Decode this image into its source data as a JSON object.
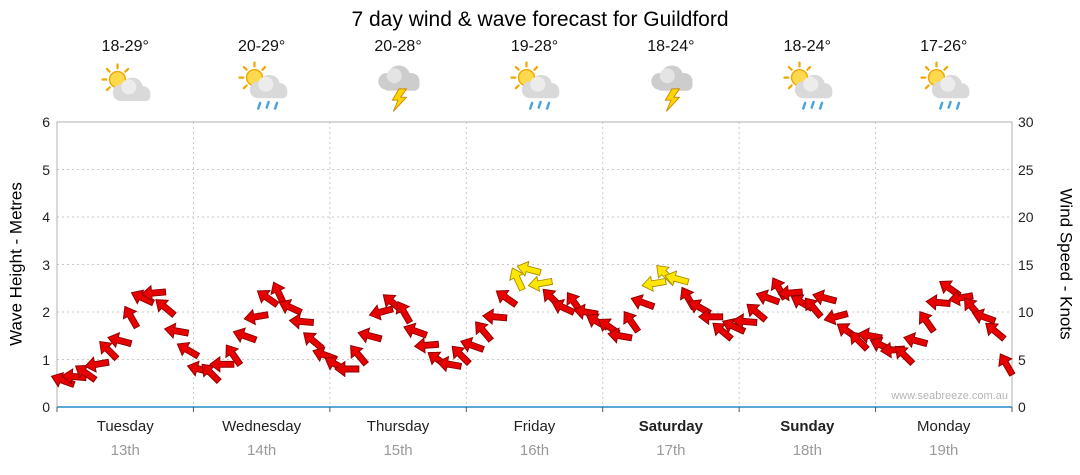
{
  "title": "7 day wind & wave forecast for Guildford",
  "watermark": "www.seabreeze.com.au",
  "axes": {
    "left_label": "Wave Height - Metres",
    "right_label": "Wind Speed - Knots",
    "left_ticks": [
      "6",
      "5",
      "4",
      "3",
      "2",
      "1",
      "0"
    ],
    "right_ticks": [
      "30",
      "25",
      "20",
      "15",
      "10",
      "5",
      "0"
    ]
  },
  "days": [
    {
      "name": "Tuesday",
      "date": "13th",
      "temp": "18-29°",
      "icon": "sun-cloud"
    },
    {
      "name": "Wednesday",
      "date": "14th",
      "temp": "20-29°",
      "icon": "sun-cloud-rain"
    },
    {
      "name": "Thursday",
      "date": "15th",
      "temp": "20-28°",
      "icon": "storm-cloud"
    },
    {
      "name": "Friday",
      "date": "16th",
      "temp": "19-28°",
      "icon": "sun-cloud-rain"
    },
    {
      "name": "Saturday",
      "date": "17th",
      "temp": "18-24°",
      "icon": "storm-cloud"
    },
    {
      "name": "Sunday",
      "date": "18th",
      "temp": "18-24°",
      "icon": "sun-cloud-rain"
    },
    {
      "name": "Monday",
      "date": "19th",
      "temp": "17-26°",
      "icon": "sun-cloud-rain"
    }
  ],
  "chart_data": {
    "type": "line",
    "title": "7 day wind & wave forecast for Guildford",
    "categories": [
      "Tuesday 13th",
      "Wednesday 14th",
      "Thursday 15th",
      "Friday 16th",
      "Saturday 17th",
      "Sunday 18th",
      "Monday 19th"
    ],
    "points_per_day": 12,
    "x_step_hours": 2,
    "left_axis": {
      "label": "Wave Height - Metres",
      "min": 0,
      "max": 6,
      "ticks": [
        0,
        1,
        2,
        3,
        4,
        5,
        6
      ]
    },
    "right_axis": {
      "label": "Wind Speed - Knots",
      "min": 0,
      "max": 30,
      "ticks": [
        0,
        5,
        10,
        15,
        20,
        25,
        30
      ]
    },
    "grid": {
      "horizontal_dotted": true,
      "vertical_dotted_day_boundaries": true
    },
    "legend": "none",
    "marker": {
      "shape": "arrow",
      "red_color": "#e60000",
      "red_outline": "#8b0000",
      "yellow_color": "#ffe600",
      "yellow_outline": "#ab8c00",
      "yellow_threshold_knots": 13
    },
    "baseline_color": "#5aa7d8",
    "series": [
      {
        "name": "Wind speed (knots, arrow markers coloured by strength)",
        "axis": "right",
        "values": [
          2.8,
          3.2,
          3.6,
          4.5,
          6.0,
          7.0,
          9.5,
          11.5,
          12.0,
          10.5,
          8.0,
          6.0,
          4.0,
          3.6,
          4.5,
          5.5,
          7.5,
          9.5,
          11.5,
          12.0,
          10.5,
          9.0,
          7.0,
          5.5,
          4.5,
          4.0,
          5.5,
          7.5,
          10.0,
          11.0,
          10.0,
          8.0,
          6.5,
          5.0,
          4.5,
          5.5,
          6.5,
          8.0,
          9.5,
          11.5,
          13.5,
          14.5,
          13.0,
          11.5,
          10.5,
          11.0,
          10.0,
          9.0,
          8.5,
          7.5,
          9.0,
          11.0,
          13.0,
          14.0,
          13.5,
          11.5,
          10.5,
          9.5,
          8.0,
          8.5,
          9.0,
          10.0,
          11.5,
          12.5,
          12.0,
          11.0,
          10.5,
          11.5,
          9.5,
          8.0,
          7.0,
          7.5,
          6.5,
          6.0,
          5.5,
          7.0,
          9.0,
          11.0,
          12.5,
          11.5,
          10.5,
          9.5,
          8.0,
          4.5
        ],
        "directions_deg": [
          200,
          185,
          215,
          170,
          225,
          195,
          240,
          205,
          175,
          220,
          190,
          210,
          195,
          225,
          180,
          235,
          200,
          170,
          215,
          245,
          205,
          185,
          220,
          200,
          210,
          180,
          230,
          195,
          165,
          220,
          240,
          200,
          175,
          215,
          190,
          225,
          200,
          230,
          185,
          215,
          245,
          195,
          170,
          225,
          205,
          235,
          190,
          210,
          215,
          190,
          235,
          200,
          170,
          225,
          195,
          240,
          210,
          180,
          220,
          205,
          185,
          220,
          200,
          240,
          175,
          210,
          230,
          195,
          165,
          215,
          225,
          190,
          205,
          175,
          225,
          195,
          235,
          185,
          215,
          170,
          230,
          200,
          220,
          240
        ]
      }
    ]
  }
}
